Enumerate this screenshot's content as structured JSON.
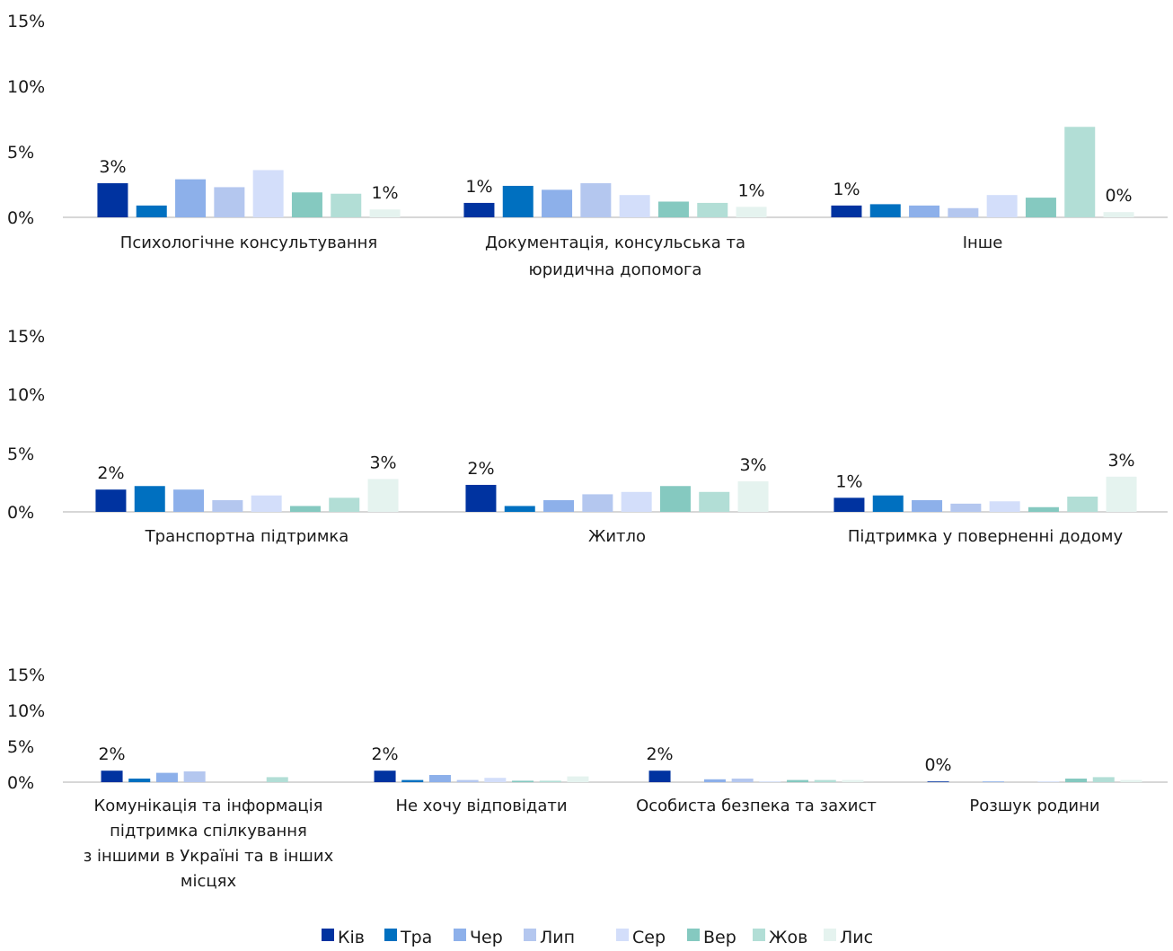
{
  "series_colors": [
    "#0033a0",
    "#0070c0",
    "#8db0ea",
    "#b4c7ef",
    "#d3defa",
    "#85c9c0",
    "#b2ded6",
    "#e5f3ef"
  ],
  "legend": [
    "Кiв",
    "Тра",
    "Чер",
    "Лип",
    "Сер",
    "Вер",
    "Жов",
    "Лис"
  ],
  "chart_data": [
    {
      "type": "bar",
      "ylim": [
        0,
        15
      ],
      "yticks": [
        "0%",
        "5%",
        "10%",
        "15%"
      ],
      "categories": [
        {
          "label_lines": [
            "Психологічне консультування"
          ],
          "values": [
            2.6,
            0.9,
            2.9,
            2.3,
            3.6,
            1.9,
            1.8,
            0.6
          ],
          "labels": {
            "0": "3%",
            "7": "1%"
          }
        },
        {
          "label_lines": [
            "Документація, консульська та",
            "юридична допомога"
          ],
          "values": [
            1.1,
            2.4,
            2.1,
            2.6,
            1.7,
            1.2,
            1.1,
            0.8
          ],
          "labels": {
            "0": "1%",
            "7": "1%"
          }
        },
        {
          "label_lines": [
            "Інше"
          ],
          "values": [
            0.9,
            1.0,
            0.9,
            0.7,
            1.7,
            1.5,
            6.9,
            0.4
          ],
          "labels": {
            "0": "1%",
            "7": "0%"
          }
        }
      ]
    },
    {
      "type": "bar",
      "ylim": [
        0,
        15
      ],
      "yticks": [
        "0%",
        "5%",
        "10%",
        "15%"
      ],
      "categories": [
        {
          "label_lines": [
            "Транспортна підтримка"
          ],
          "values": [
            1.9,
            2.2,
            1.9,
            1.0,
            1.4,
            0.5,
            1.2,
            2.8
          ],
          "labels": {
            "0": "2%",
            "7": "3%"
          }
        },
        {
          "label_lines": [
            "Житло"
          ],
          "values": [
            2.3,
            0.5,
            1.0,
            1.5,
            1.7,
            2.2,
            1.7,
            2.6
          ],
          "labels": {
            "0": "2%",
            "7": "3%"
          }
        },
        {
          "label_lines": [
            "Підтримка у поверненні додому"
          ],
          "values": [
            1.2,
            1.4,
            1.0,
            0.7,
            0.9,
            0.4,
            1.3,
            3.0
          ],
          "labels": {
            "0": "1%",
            "7": "3%"
          }
        }
      ]
    },
    {
      "type": "bar",
      "ylim": [
        0,
        15
      ],
      "yticks": [
        "0%",
        "5%",
        "10%",
        "15%"
      ],
      "categories": [
        {
          "label_lines": [
            "Комунікація та інформація",
            "підтримка спілкування",
            "з іншими в Україні та в інших",
            "місцях"
          ],
          "values": [
            1.6,
            0.5,
            1.3,
            1.5,
            0.0,
            0.0,
            0.7,
            0.0
          ],
          "labels": {
            "0": "2%"
          }
        },
        {
          "label_lines": [
            "Не  хочу відповідати"
          ],
          "values": [
            1.6,
            0.3,
            1.0,
            0.3,
            0.6,
            0.2,
            0.2,
            0.8
          ],
          "labels": {
            "0": "2%"
          }
        },
        {
          "label_lines": [
            "Особиста безпека та захист"
          ],
          "values": [
            1.6,
            0.0,
            0.4,
            0.5,
            0.1,
            0.3,
            0.3,
            0.3
          ],
          "labels": {
            "0": "2%"
          }
        },
        {
          "label_lines": [
            "Розшук родини"
          ],
          "values": [
            0.1,
            0.0,
            0.1,
            0.0,
            0.1,
            0.5,
            0.7,
            0.3
          ],
          "labels": {
            "0": "0%"
          }
        }
      ]
    }
  ]
}
